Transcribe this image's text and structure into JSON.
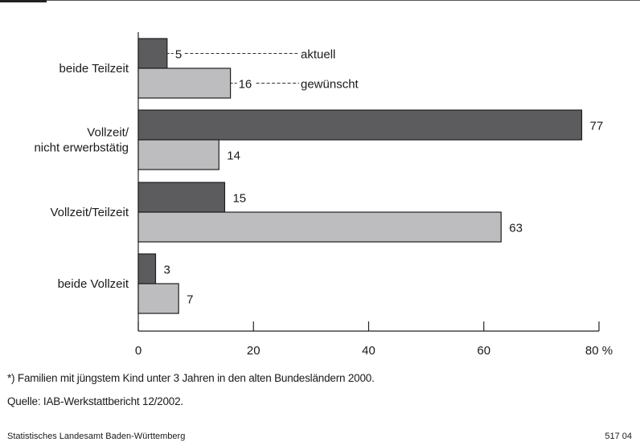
{
  "chart_data": {
    "type": "bar",
    "orientation": "horizontal",
    "categories": [
      [
        "beide Teilzeit"
      ],
      [
        "Vollzeit/",
        "nicht erwerbstätig"
      ],
      [
        "Vollzeit/Teilzeit"
      ],
      [
        "beide Vollzeit"
      ]
    ],
    "series": [
      {
        "name": "aktuell",
        "values": [
          5,
          77,
          15,
          3
        ],
        "color": "#5c5c5f"
      },
      {
        "name": "gewünscht",
        "values": [
          16,
          14,
          63,
          7
        ],
        "color": "#bdbdc0"
      }
    ],
    "xlim": [
      0,
      80
    ],
    "xticks": [
      "0",
      "20",
      "40",
      "60",
      "80 %"
    ],
    "xtick_values": [
      0,
      20,
      40,
      60,
      80
    ],
    "grid": false,
    "legend": "inline labels beside first category bars"
  },
  "footnote": "*) Familien mit jüngstem Kind unter 3 Jahren in den alten Bundesländern 2000.",
  "source": "Quelle: IAB-Werkstattbericht 12/2002.",
  "publisher": "Statistisches Landesamt Baden-Württemberg",
  "chart_number": "517 04"
}
